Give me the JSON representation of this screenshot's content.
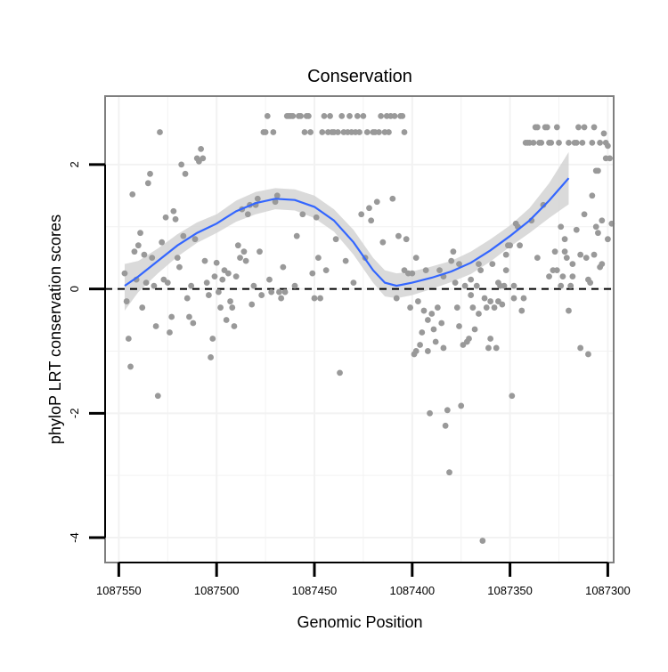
{
  "chart_data": {
    "type": "scatter",
    "title": "Conservation",
    "xlabel": "Genomic Position",
    "ylabel": "phyloP LRT conservation scores",
    "x_reversed": true,
    "xlim": [
      1087557,
      1087297
    ],
    "ylim": [
      -4.4,
      3.1
    ],
    "grid": true,
    "legend": "none",
    "x_ticks": [
      1087550,
      1087500,
      1087450,
      1087400,
      1087350,
      1087300
    ],
    "x_tick_labels": [
      "1087550",
      "1087500",
      "1087450",
      "1087400",
      "1087350",
      "1087300"
    ],
    "y_ticks": [
      2,
      0,
      -2,
      -4
    ],
    "y_tick_labels": [
      "2",
      "0",
      "-2",
      "-4"
    ],
    "reference_line": {
      "y": 0,
      "style": "dashed"
    },
    "colors": {
      "points": "#999999",
      "smooth_line": "#3366ff",
      "confidence_band": "#d3d3d3",
      "panel_border": "#7f7f7f",
      "grid": "#f2f2f2"
    },
    "points": [
      [
        1087547,
        0.25
      ],
      [
        1087546,
        -0.2
      ],
      [
        1087545,
        -0.8
      ],
      [
        1087544,
        -1.25
      ],
      [
        1087543,
        1.52
      ],
      [
        1087542,
        0.6
      ],
      [
        1087541,
        0.15
      ],
      [
        1087540,
        0.7
      ],
      [
        1087539,
        0.9
      ],
      [
        1087538,
        -0.3
      ],
      [
        1087537,
        0.55
      ],
      [
        1087536,
        0.1
      ],
      [
        1087535,
        1.7
      ],
      [
        1087534,
        1.85
      ],
      [
        1087533,
        0.5
      ],
      [
        1087532,
        0.05
      ],
      [
        1087531,
        -0.6
      ],
      [
        1087530,
        -1.72
      ],
      [
        1087529,
        2.52
      ],
      [
        1087528,
        0.75
      ],
      [
        1087527,
        0.15
      ],
      [
        1087526,
        1.15
      ],
      [
        1087525,
        0.1
      ],
      [
        1087524,
        -0.7
      ],
      [
        1087523,
        -0.45
      ],
      [
        1087522,
        1.25
      ],
      [
        1087521,
        1.12
      ],
      [
        1087520,
        0.5
      ],
      [
        1087519,
        0.35
      ],
      [
        1087518,
        2.0
      ],
      [
        1087517,
        0.85
      ],
      [
        1087516,
        1.85
      ],
      [
        1087515,
        -0.15
      ],
      [
        1087514,
        -0.45
      ],
      [
        1087513,
        0.05
      ],
      [
        1087512,
        -0.55
      ],
      [
        1087511,
        0.8
      ],
      [
        1087510,
        2.1
      ],
      [
        1087509,
        2.05
      ],
      [
        1087508,
        2.25
      ],
      [
        1087507,
        2.1
      ],
      [
        1087506,
        0.45
      ],
      [
        1087505,
        0.1
      ],
      [
        1087504,
        -0.1
      ],
      [
        1087503,
        -1.1
      ],
      [
        1087502,
        -0.8
      ],
      [
        1087501,
        0.2
      ],
      [
        1087500,
        0.42
      ],
      [
        1087499,
        -0.05
      ],
      [
        1087498,
        -0.3
      ],
      [
        1087497,
        0.15
      ],
      [
        1087496,
        0.3
      ],
      [
        1087495,
        -0.5
      ],
      [
        1087494,
        0.25
      ],
      [
        1087493,
        -0.2
      ],
      [
        1087492,
        -0.3
      ],
      [
        1087491,
        -0.6
      ],
      [
        1087490,
        0.2
      ],
      [
        1087489,
        0.7
      ],
      [
        1087488,
        0.5
      ],
      [
        1087487,
        1.28
      ],
      [
        1087486,
        0.6
      ],
      [
        1087485,
        0.45
      ],
      [
        1087484,
        1.2
      ],
      [
        1087483,
        1.35
      ],
      [
        1087482,
        -0.25
      ],
      [
        1087481,
        0.05
      ],
      [
        1087480,
        1.35
      ],
      [
        1087479,
        1.45
      ],
      [
        1087478,
        0.6
      ],
      [
        1087477,
        -0.1
      ],
      [
        1087476,
        2.52
      ],
      [
        1087475,
        2.52
      ],
      [
        1087474,
        2.78
      ],
      [
        1087473,
        0.15
      ],
      [
        1087472,
        -0.05
      ],
      [
        1087471,
        2.52
      ],
      [
        1087470,
        1.4
      ],
      [
        1087469,
        1.5
      ],
      [
        1087468,
        -0.05
      ],
      [
        1087467,
        -0.15
      ],
      [
        1087466,
        0.35
      ],
      [
        1087465,
        -0.05
      ],
      [
        1087464,
        2.78
      ],
      [
        1087463,
        2.78
      ],
      [
        1087462,
        2.78
      ],
      [
        1087461,
        2.78
      ],
      [
        1087460,
        0.05
      ],
      [
        1087459,
        0.85
      ],
      [
        1087458,
        2.78
      ],
      [
        1087457,
        2.78
      ],
      [
        1087456,
        1.2
      ],
      [
        1087455,
        2.52
      ],
      [
        1087454,
        2.78
      ],
      [
        1087453,
        2.78
      ],
      [
        1087452,
        2.52
      ],
      [
        1087451,
        0.25
      ],
      [
        1087450,
        -0.15
      ],
      [
        1087449,
        1.15
      ],
      [
        1087448,
        0.5
      ],
      [
        1087447,
        -0.15
      ],
      [
        1087446,
        2.52
      ],
      [
        1087445,
        2.78
      ],
      [
        1087444,
        0.3
      ],
      [
        1087443,
        2.52
      ],
      [
        1087442,
        2.78
      ],
      [
        1087441,
        2.52
      ],
      [
        1087440,
        2.52
      ],
      [
        1087439,
        0.8
      ],
      [
        1087438,
        2.52
      ],
      [
        1087437,
        -1.35
      ],
      [
        1087436,
        2.78
      ],
      [
        1087435,
        2.52
      ],
      [
        1087434,
        0.45
      ],
      [
        1087433,
        2.52
      ],
      [
        1087432,
        2.78
      ],
      [
        1087431,
        2.52
      ],
      [
        1087430,
        0.1
      ],
      [
        1087429,
        2.52
      ],
      [
        1087428,
        2.78
      ],
      [
        1087427,
        2.52
      ],
      [
        1087426,
        1.2
      ],
      [
        1087425,
        2.78
      ],
      [
        1087424,
        0.5
      ],
      [
        1087423,
        2.52
      ],
      [
        1087422,
        1.3
      ],
      [
        1087421,
        1.1
      ],
      [
        1087420,
        2.52
      ],
      [
        1087419,
        2.52
      ],
      [
        1087418,
        1.4
      ],
      [
        1087417,
        2.52
      ],
      [
        1087416,
        2.78
      ],
      [
        1087415,
        0.75
      ],
      [
        1087414,
        2.52
      ],
      [
        1087413,
        2.78
      ],
      [
        1087412,
        2.52
      ],
      [
        1087411,
        2.78
      ],
      [
        1087410,
        1.45
      ],
      [
        1087409,
        2.78
      ],
      [
        1087408,
        -0.15
      ],
      [
        1087407,
        0.85
      ],
      [
        1087406,
        2.78
      ],
      [
        1087405,
        2.78
      ],
      [
        1087404,
        2.52
      ],
      [
        1087403,
        0.8
      ],
      [
        1087402,
        0.25
      ],
      [
        1087401,
        -0.3
      ],
      [
        1087400,
        0.25
      ],
      [
        1087399,
        -1.05
      ],
      [
        1087398,
        -1.0
      ],
      [
        1087397,
        -0.2
      ],
      [
        1087396,
        -0.9
      ],
      [
        1087395,
        -0.7
      ],
      [
        1087394,
        -0.35
      ],
      [
        1087393,
        0.3
      ],
      [
        1087392,
        -1.0
      ],
      [
        1087391,
        -2.0
      ],
      [
        1087390,
        -0.4
      ],
      [
        1087389,
        -0.65
      ],
      [
        1087388,
        -0.85
      ],
      [
        1087387,
        -0.3
      ],
      [
        1087386,
        0.3
      ],
      [
        1087385,
        -0.55
      ],
      [
        1087384,
        -0.95
      ],
      [
        1087383,
        -2.2
      ],
      [
        1087382,
        -1.95
      ],
      [
        1087381,
        -2.95
      ],
      [
        1087380,
        0.45
      ],
      [
        1087379,
        0.6
      ],
      [
        1087378,
        0.1
      ],
      [
        1087377,
        -0.3
      ],
      [
        1087376,
        -0.6
      ],
      [
        1087375,
        -1.88
      ],
      [
        1087374,
        -0.9
      ],
      [
        1087373,
        0.05
      ],
      [
        1087372,
        -0.85
      ],
      [
        1087371,
        -0.8
      ],
      [
        1087370,
        0.15
      ],
      [
        1087369,
        -0.3
      ],
      [
        1087368,
        -0.65
      ],
      [
        1087367,
        0.05
      ],
      [
        1087366,
        0.4
      ],
      [
        1087365,
        0.3
      ],
      [
        1087364,
        -4.05
      ],
      [
        1087363,
        -0.15
      ],
      [
        1087362,
        -0.3
      ],
      [
        1087361,
        -0.95
      ],
      [
        1087360,
        -0.8
      ],
      [
        1087359,
        0.4
      ],
      [
        1087358,
        -0.3
      ],
      [
        1087357,
        -0.95
      ],
      [
        1087356,
        -0.2
      ],
      [
        1087355,
        0.05
      ],
      [
        1087354,
        -0.25
      ],
      [
        1087353,
        0.05
      ],
      [
        1087352,
        0.55
      ],
      [
        1087351,
        0.7
      ],
      [
        1087350,
        0.7
      ],
      [
        1087349,
        -1.72
      ],
      [
        1087348,
        -0.15
      ],
      [
        1087347,
        1.05
      ],
      [
        1087346,
        1.0
      ],
      [
        1087345,
        0.7
      ],
      [
        1087344,
        -0.35
      ],
      [
        1087343,
        -0.15
      ],
      [
        1087342,
        2.35
      ],
      [
        1087341,
        2.35
      ],
      [
        1087340,
        2.35
      ],
      [
        1087339,
        1.1
      ],
      [
        1087338,
        2.35
      ],
      [
        1087337,
        2.6
      ],
      [
        1087336,
        2.6
      ],
      [
        1087335,
        2.35
      ],
      [
        1087334,
        2.35
      ],
      [
        1087333,
        1.35
      ],
      [
        1087332,
        2.6
      ],
      [
        1087331,
        2.6
      ],
      [
        1087330,
        2.35
      ],
      [
        1087329,
        2.35
      ],
      [
        1087328,
        0.3
      ],
      [
        1087327,
        0.6
      ],
      [
        1087326,
        2.6
      ],
      [
        1087325,
        2.35
      ],
      [
        1087324,
        0.05
      ],
      [
        1087323,
        0.2
      ],
      [
        1087322,
        0.6
      ],
      [
        1087321,
        0.5
      ],
      [
        1087320,
        -0.35
      ],
      [
        1087319,
        0.05
      ],
      [
        1087318,
        0.2
      ],
      [
        1087317,
        2.35
      ],
      [
        1087316,
        2.35
      ],
      [
        1087315,
        2.6
      ],
      [
        1087314,
        -0.95
      ],
      [
        1087313,
        2.35
      ],
      [
        1087312,
        2.6
      ],
      [
        1087311,
        0.5
      ],
      [
        1087310,
        0.15
      ],
      [
        1087309,
        0.1
      ],
      [
        1087308,
        2.35
      ],
      [
        1087307,
        2.6
      ],
      [
        1087306,
        1.0
      ],
      [
        1087305,
        0.9
      ],
      [
        1087304,
        2.35
      ],
      [
        1087303,
        1.1
      ],
      [
        1087302,
        2.5
      ],
      [
        1087301,
        2.35
      ],
      [
        1087300,
        0.8
      ],
      [
        1087299,
        2.1
      ],
      [
        1087298,
        1.05
      ],
      [
        1087300,
        2.3
      ],
      [
        1087301,
        2.1
      ],
      [
        1087303,
        0.4
      ],
      [
        1087304,
        0.35
      ],
      [
        1087305,
        1.9
      ],
      [
        1087306,
        1.9
      ],
      [
        1087307,
        0.55
      ],
      [
        1087308,
        1.5
      ],
      [
        1087310,
        -1.05
      ],
      [
        1087312,
        1.2
      ],
      [
        1087314,
        0.55
      ],
      [
        1087316,
        0.95
      ],
      [
        1087318,
        0.4
      ],
      [
        1087320,
        2.35
      ],
      [
        1087322,
        0.8
      ],
      [
        1087324,
        1.0
      ],
      [
        1087326,
        0.3
      ],
      [
        1087330,
        0.2
      ],
      [
        1087336,
        0.5
      ],
      [
        1087348,
        0.05
      ],
      [
        1087352,
        0.3
      ],
      [
        1087356,
        0.1
      ],
      [
        1087360,
        -0.2
      ],
      [
        1087366,
        -0.4
      ],
      [
        1087370,
        -0.1
      ],
      [
        1087376,
        0.4
      ],
      [
        1087384,
        0.2
      ],
      [
        1087392,
        -0.5
      ],
      [
        1087398,
        0.5
      ],
      [
        1087404,
        0.3
      ]
    ],
    "smooth": [
      [
        1087547,
        0.05
      ],
      [
        1087540,
        0.2
      ],
      [
        1087530,
        0.45
      ],
      [
        1087520,
        0.7
      ],
      [
        1087510,
        0.9
      ],
      [
        1087500,
        1.05
      ],
      [
        1087490,
        1.25
      ],
      [
        1087480,
        1.38
      ],
      [
        1087470,
        1.45
      ],
      [
        1087460,
        1.43
      ],
      [
        1087450,
        1.32
      ],
      [
        1087440,
        1.1
      ],
      [
        1087430,
        0.75
      ],
      [
        1087420,
        0.3
      ],
      [
        1087414,
        0.1
      ],
      [
        1087408,
        0.05
      ],
      [
        1087400,
        0.1
      ],
      [
        1087390,
        0.18
      ],
      [
        1087380,
        0.28
      ],
      [
        1087370,
        0.42
      ],
      [
        1087360,
        0.62
      ],
      [
        1087350,
        0.85
      ],
      [
        1087340,
        1.1
      ],
      [
        1087330,
        1.42
      ],
      [
        1087320,
        1.78
      ]
    ],
    "band": [
      [
        1087547,
        0.4,
        -0.35
      ],
      [
        1087540,
        0.45,
        -0.05
      ],
      [
        1087530,
        0.65,
        0.25
      ],
      [
        1087520,
        0.88,
        0.52
      ],
      [
        1087510,
        1.07,
        0.74
      ],
      [
        1087500,
        1.2,
        0.9
      ],
      [
        1087490,
        1.42,
        1.08
      ],
      [
        1087480,
        1.56,
        1.2
      ],
      [
        1087470,
        1.62,
        1.28
      ],
      [
        1087460,
        1.6,
        1.26
      ],
      [
        1087450,
        1.5,
        1.14
      ],
      [
        1087440,
        1.28,
        0.92
      ],
      [
        1087430,
        0.95,
        0.55
      ],
      [
        1087420,
        0.5,
        0.1
      ],
      [
        1087414,
        0.3,
        -0.12
      ],
      [
        1087408,
        0.25,
        -0.15
      ],
      [
        1087400,
        0.28,
        -0.1
      ],
      [
        1087390,
        0.36,
        0.0
      ],
      [
        1087380,
        0.45,
        0.11
      ],
      [
        1087370,
        0.6,
        0.24
      ],
      [
        1087360,
        0.8,
        0.44
      ],
      [
        1087350,
        1.02,
        0.68
      ],
      [
        1087340,
        1.3,
        0.9
      ],
      [
        1087330,
        1.7,
        1.14
      ],
      [
        1087320,
        2.2,
        1.36
      ]
    ]
  }
}
